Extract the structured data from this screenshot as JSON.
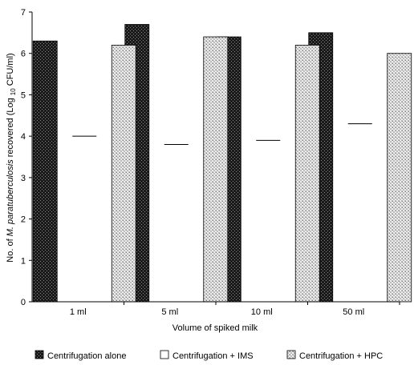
{
  "chart_data": {
    "type": "bar",
    "title": "",
    "xlabel": "Volume of spiked milk",
    "ylabel": "No. of M. paratuberculosis recovered (Log 10 CFU/ml)",
    "ylabel_parts": {
      "prefix": "No. of ",
      "italic": "M. paratuberculosis",
      "middle": " recovered (Log ",
      "subscript": "10",
      "suffix": " CFU/ml)"
    },
    "categories": [
      "1 ml",
      "5 ml",
      "10 ml",
      "50 ml"
    ],
    "ylim": [
      0,
      7
    ],
    "yticks": [
      "0",
      "1",
      "2",
      "3",
      "4",
      "5",
      "6",
      "7"
    ],
    "grid": false,
    "legend_position": "bottom",
    "series": [
      {
        "name": "Centrifugation alone",
        "values": [
          6.3,
          6.7,
          6.4,
          6.5
        ],
        "fill": "dark-checker"
      },
      {
        "name": "Centrifugation + IMS",
        "values": [
          4.0,
          3.8,
          3.9,
          4.3
        ],
        "fill": "white"
      },
      {
        "name": "Centrifugation + HPC",
        "values": [
          6.2,
          6.4,
          6.2,
          6.0
        ],
        "fill": "light-checker"
      }
    ]
  }
}
